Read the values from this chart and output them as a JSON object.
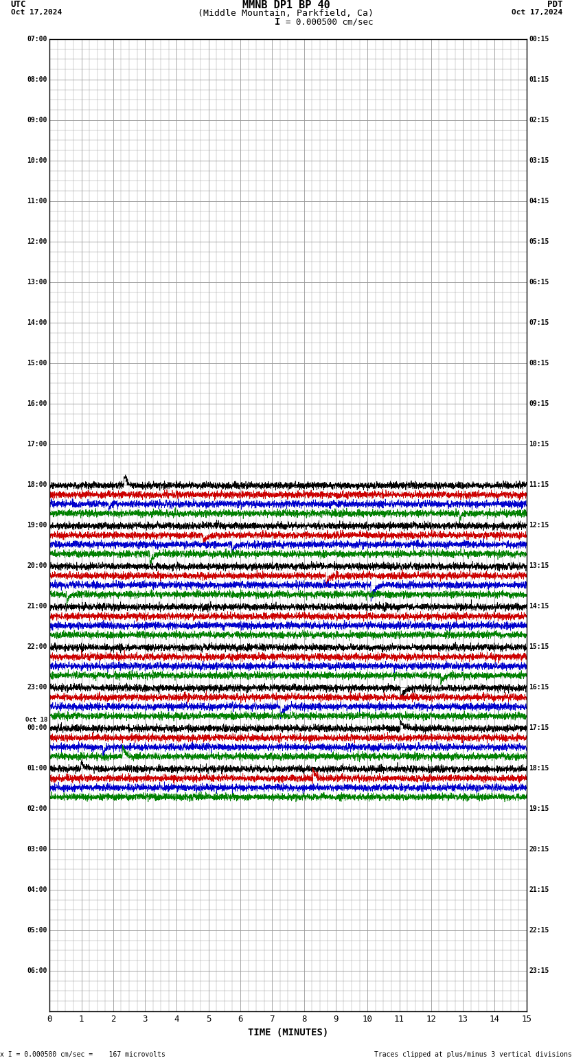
{
  "title_line1": "MMNB DP1 BP 40",
  "title_line2": "(Middle Mountain, Parkfield, Ca)",
  "scale_text": "I = 0.000500 cm/sec",
  "scale_bar_char": "I",
  "utc_label": "UTC",
  "pdt_label": "PDT",
  "date_left": "Oct 17,2024",
  "date_right": "Oct 17,2024",
  "bottom_left": "x I = 0.000500 cm/sec =    167 microvolts",
  "bottom_right": "Traces clipped at plus/minus 3 vertical divisions",
  "xlabel": "TIME (MINUTES)",
  "xmin": 0,
  "xmax": 15,
  "left_times": [
    "07:00",
    "08:00",
    "09:00",
    "10:00",
    "11:00",
    "12:00",
    "13:00",
    "14:00",
    "15:00",
    "16:00",
    "17:00",
    "18:00",
    "19:00",
    "20:00",
    "21:00",
    "22:00",
    "23:00",
    "Oct 18\n00:00",
    "01:00",
    "02:00",
    "03:00",
    "04:00",
    "05:00",
    "06:00"
  ],
  "right_times": [
    "00:15",
    "01:15",
    "02:15",
    "03:15",
    "04:15",
    "05:15",
    "06:15",
    "07:15",
    "08:15",
    "09:15",
    "10:15",
    "11:15",
    "12:15",
    "13:15",
    "14:15",
    "15:15",
    "16:15",
    "17:15",
    "18:15",
    "19:15",
    "20:15",
    "21:15",
    "22:15",
    "23:15"
  ],
  "n_rows": 24,
  "active_rows_from_top": [
    11,
    12,
    13,
    14,
    15,
    16,
    17,
    18
  ],
  "trace_colors_order": [
    "#000000",
    "#cc0000",
    "#0000cc",
    "#008000"
  ],
  "bg_color": "#ffffff",
  "grid_color": "#999999",
  "fig_width": 8.5,
  "fig_height": 15.84,
  "trace_amplitude": 0.1,
  "trace_linewidth": 0.5
}
